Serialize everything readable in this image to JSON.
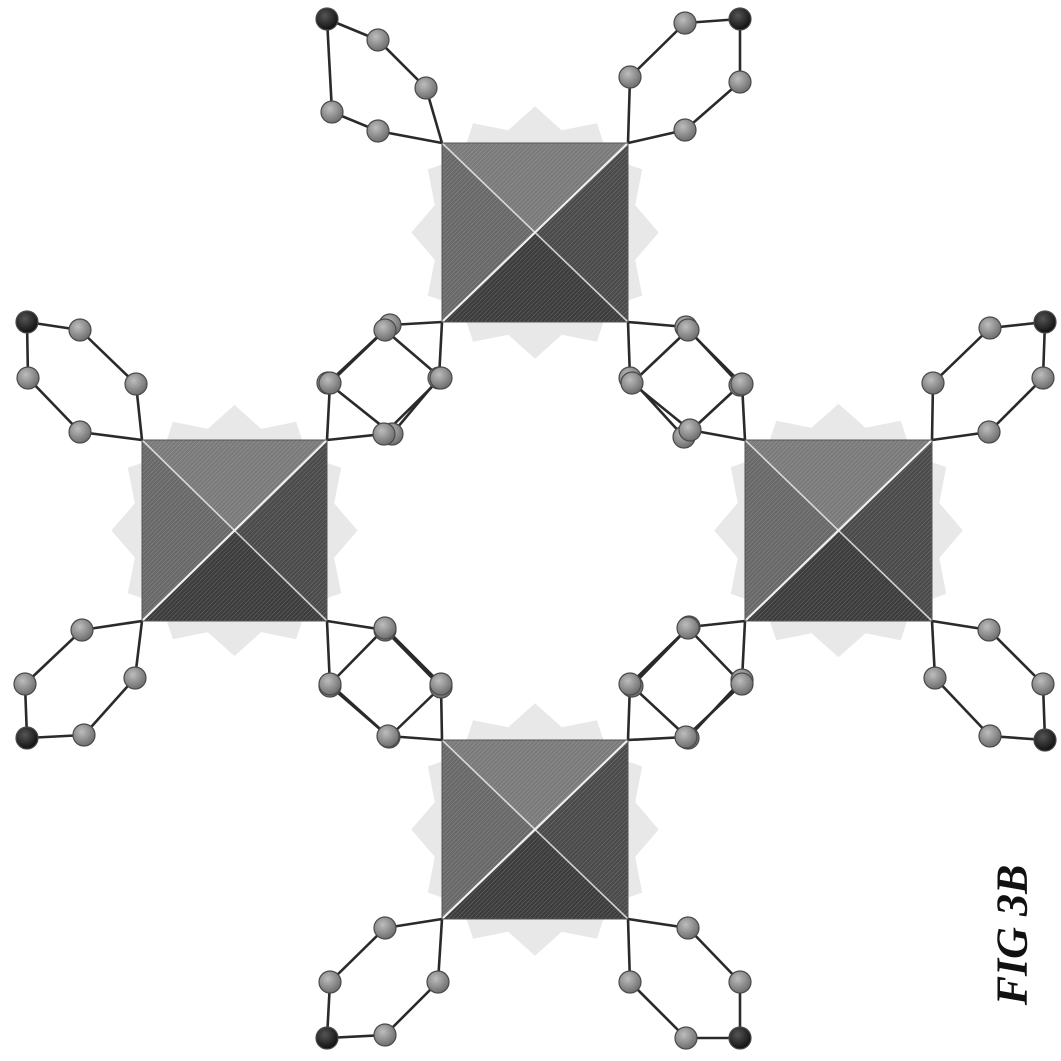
{
  "figure": {
    "label": "FIG 3B",
    "description_units": 4
  },
  "colors": {
    "octa_top": "#7a7a7a",
    "octa_right": "#4a4a4a",
    "octa_bottom": "#3c3c3c",
    "octa_left": "#686868",
    "octa_edge": "#f0f0f0",
    "halo": "#d6d6d6",
    "atom": "#8c8c8c",
    "atom_terminal": "#1e1e1e",
    "atom_stroke": "#4a4a4a",
    "bond": "#2a2a2a"
  }
}
